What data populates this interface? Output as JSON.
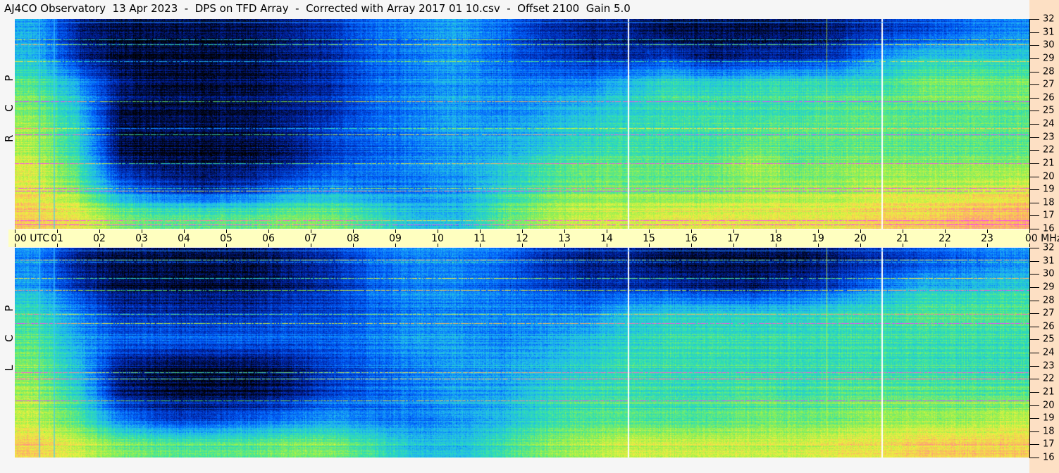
{
  "title": "AJ4CO Observatory  13 Apr 2023  -  DPS on TFD Array  -  Corrected with Array 2017 01 10.csv  -  Offset 2100  Gain 5.0",
  "chart_data": {
    "type": "heatmap",
    "title": "AJ4CO Observatory  13 Apr 2023  -  DPS on TFD Array  -  Corrected with Array 2017 01 10.csv  -  Offset 2100  Gain 5.0",
    "xlabel": "UTC",
    "ylabel": "MHz",
    "xlim": [
      0,
      24
    ],
    "ylim": [
      16,
      32
    ],
    "x_tick_labels": [
      "00 UTC",
      "01",
      "02",
      "03",
      "04",
      "05",
      "06",
      "07",
      "08",
      "09",
      "10",
      "11",
      "12",
      "13",
      "14",
      "15",
      "16",
      "17",
      "18",
      "19",
      "20",
      "21",
      "22",
      "23",
      "00 MHz"
    ],
    "y_ticks": [
      16,
      17,
      18,
      19,
      20,
      21,
      22,
      23,
      24,
      25,
      26,
      27,
      28,
      29,
      30,
      31,
      32
    ],
    "colormap": [
      "#000000",
      "#0020a0",
      "#0060ff",
      "#20b8f0",
      "#30e0b0",
      "#90f050",
      "#f0f040",
      "#ffa070",
      "#ff40ff"
    ],
    "vertical_markers_utc": [
      14.5,
      19.2,
      20.5
    ],
    "panels": [
      {
        "label": "R C P",
        "bands_mhz": [
          "30-32",
          "28-30",
          "26-28",
          "24-26",
          "22-24",
          "20-22",
          "18-20",
          "16-18"
        ],
        "relative_intensity_by_hour": [
          [
            0.35,
            0.1,
            0.05,
            0.05,
            0.05,
            0.05,
            0.1,
            0.15,
            0.25,
            0.3,
            0.35,
            0.25,
            0.15,
            0.1,
            0.1,
            0.05,
            0.05,
            0.05,
            0.05,
            0.1,
            0.15,
            0.2,
            0.25,
            0.3
          ],
          [
            0.4,
            0.15,
            0.05,
            0.05,
            0.05,
            0.05,
            0.1,
            0.15,
            0.25,
            0.3,
            0.35,
            0.25,
            0.2,
            0.15,
            0.15,
            0.2,
            0.1,
            0.15,
            0.15,
            0.2,
            0.35,
            0.45,
            0.45,
            0.45
          ],
          [
            0.55,
            0.35,
            0.1,
            0.05,
            0.05,
            0.05,
            0.1,
            0.15,
            0.25,
            0.3,
            0.35,
            0.3,
            0.3,
            0.3,
            0.4,
            0.5,
            0.45,
            0.5,
            0.5,
            0.5,
            0.5,
            0.6,
            0.6,
            0.6
          ],
          [
            0.6,
            0.4,
            0.05,
            0.05,
            0.05,
            0.05,
            0.1,
            0.15,
            0.25,
            0.3,
            0.35,
            0.3,
            0.35,
            0.4,
            0.45,
            0.5,
            0.5,
            0.5,
            0.5,
            0.55,
            0.55,
            0.55,
            0.55,
            0.55
          ],
          [
            0.65,
            0.45,
            0.05,
            0.05,
            0.05,
            0.05,
            0.1,
            0.2,
            0.25,
            0.3,
            0.35,
            0.35,
            0.4,
            0.45,
            0.5,
            0.5,
            0.5,
            0.55,
            0.55,
            0.55,
            0.55,
            0.55,
            0.55,
            0.55
          ],
          [
            0.7,
            0.5,
            0.1,
            0.05,
            0.05,
            0.05,
            0.1,
            0.2,
            0.25,
            0.3,
            0.35,
            0.4,
            0.5,
            0.55,
            0.55,
            0.55,
            0.55,
            0.65,
            0.55,
            0.6,
            0.6,
            0.6,
            0.6,
            0.6
          ],
          [
            0.75,
            0.6,
            0.3,
            0.2,
            0.15,
            0.2,
            0.3,
            0.35,
            0.3,
            0.3,
            0.35,
            0.45,
            0.55,
            0.6,
            0.6,
            0.6,
            0.6,
            0.65,
            0.65,
            0.65,
            0.7,
            0.7,
            0.7,
            0.75
          ],
          [
            0.8,
            0.75,
            0.6,
            0.55,
            0.55,
            0.55,
            0.6,
            0.6,
            0.5,
            0.4,
            0.4,
            0.55,
            0.65,
            0.7,
            0.7,
            0.75,
            0.75,
            0.75,
            0.75,
            0.75,
            0.8,
            0.8,
            0.85,
            0.85
          ]
        ]
      },
      {
        "label": "L C P",
        "bands_mhz": [
          "30-32",
          "28-30",
          "26-28",
          "24-26",
          "22-24",
          "20-22",
          "18-20",
          "16-18"
        ],
        "relative_intensity_by_hour": [
          [
            0.3,
            0.1,
            0.05,
            0.05,
            0.05,
            0.05,
            0.1,
            0.15,
            0.25,
            0.3,
            0.3,
            0.25,
            0.15,
            0.1,
            0.1,
            0.05,
            0.05,
            0.05,
            0.05,
            0.1,
            0.15,
            0.2,
            0.25,
            0.3
          ],
          [
            0.35,
            0.15,
            0.05,
            0.05,
            0.05,
            0.05,
            0.1,
            0.15,
            0.25,
            0.3,
            0.3,
            0.25,
            0.2,
            0.15,
            0.15,
            0.15,
            0.1,
            0.1,
            0.15,
            0.2,
            0.3,
            0.4,
            0.4,
            0.45
          ],
          [
            0.5,
            0.3,
            0.15,
            0.15,
            0.15,
            0.15,
            0.2,
            0.2,
            0.25,
            0.3,
            0.3,
            0.3,
            0.3,
            0.3,
            0.4,
            0.45,
            0.45,
            0.45,
            0.45,
            0.5,
            0.5,
            0.55,
            0.55,
            0.55
          ],
          [
            0.55,
            0.35,
            0.25,
            0.25,
            0.25,
            0.25,
            0.25,
            0.25,
            0.3,
            0.35,
            0.35,
            0.3,
            0.35,
            0.4,
            0.45,
            0.5,
            0.5,
            0.5,
            0.5,
            0.5,
            0.5,
            0.5,
            0.5,
            0.5
          ],
          [
            0.6,
            0.4,
            0.1,
            0.05,
            0.05,
            0.05,
            0.1,
            0.2,
            0.25,
            0.3,
            0.35,
            0.35,
            0.4,
            0.45,
            0.5,
            0.5,
            0.5,
            0.5,
            0.5,
            0.5,
            0.5,
            0.5,
            0.5,
            0.5
          ],
          [
            0.65,
            0.45,
            0.1,
            0.05,
            0.05,
            0.05,
            0.1,
            0.2,
            0.25,
            0.3,
            0.35,
            0.35,
            0.45,
            0.5,
            0.5,
            0.5,
            0.5,
            0.55,
            0.5,
            0.55,
            0.55,
            0.55,
            0.55,
            0.55
          ],
          [
            0.7,
            0.55,
            0.3,
            0.2,
            0.2,
            0.25,
            0.3,
            0.35,
            0.3,
            0.3,
            0.35,
            0.4,
            0.5,
            0.55,
            0.55,
            0.55,
            0.55,
            0.6,
            0.6,
            0.6,
            0.65,
            0.65,
            0.65,
            0.7
          ],
          [
            0.8,
            0.7,
            0.6,
            0.55,
            0.55,
            0.55,
            0.6,
            0.6,
            0.5,
            0.4,
            0.4,
            0.5,
            0.6,
            0.65,
            0.7,
            0.7,
            0.7,
            0.7,
            0.7,
            0.75,
            0.75,
            0.8,
            0.8,
            0.8
          ]
        ]
      }
    ]
  }
}
